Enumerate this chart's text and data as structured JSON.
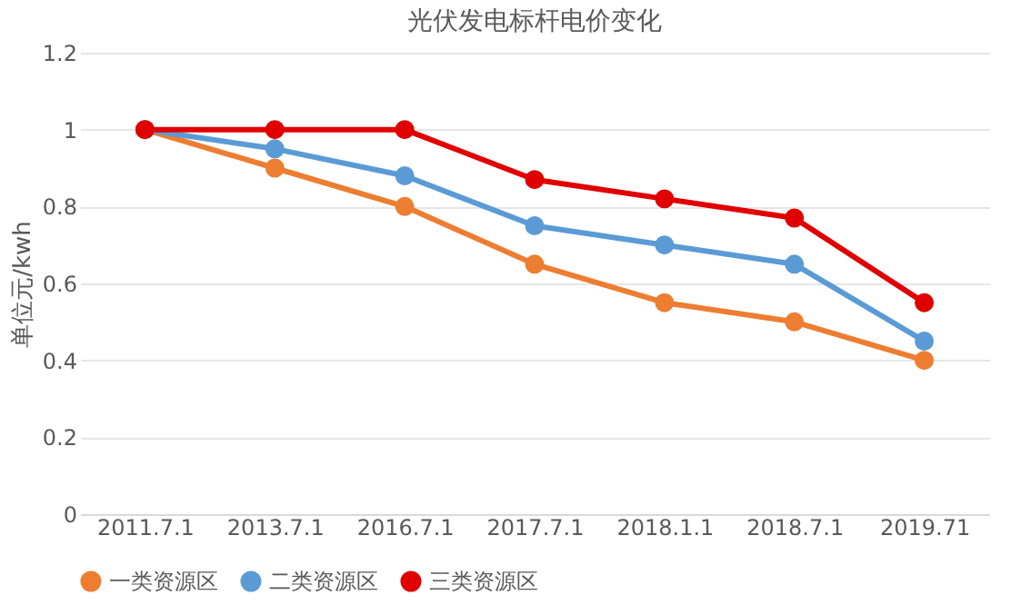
{
  "chart_data": {
    "type": "line",
    "title": "光伏发电标杆电价变化",
    "ylabel": "单位元/kwh",
    "categories": [
      "2011.7.1",
      "2013.7.1",
      "2016.7.1",
      "2017.7.1",
      "2018.1.1",
      "2018.7.1",
      "2019.71"
    ],
    "series": [
      {
        "name": "一类资源区",
        "color": "#ed7d31",
        "values": [
          1,
          0.9,
          0.8,
          0.65,
          0.55,
          0.5,
          0.4
        ]
      },
      {
        "name": "二类资源区",
        "color": "#5b9bd5",
        "values": [
          1,
          0.95,
          0.88,
          0.75,
          0.7,
          0.65,
          0.45
        ]
      },
      {
        "name": "三类资源区",
        "color": "#e00000",
        "values": [
          1,
          1,
          1,
          0.87,
          0.82,
          0.77,
          0.55
        ]
      }
    ],
    "ylim": [
      0,
      1.2
    ],
    "yticks": [
      0,
      0.2,
      0.4,
      0.6,
      0.8,
      1,
      1.2
    ],
    "grid": "y",
    "legend": "bottom",
    "marker": "circle",
    "line_style": "solid"
  }
}
